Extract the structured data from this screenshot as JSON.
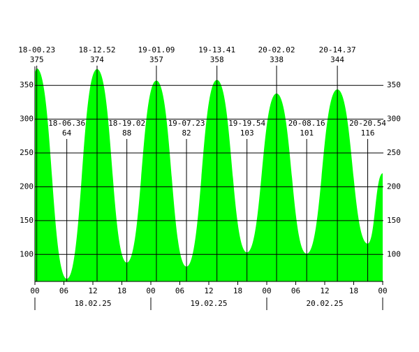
{
  "chart_data": {
    "type": "area",
    "x": [
      0,
      0.383,
      6.6,
      12.867,
      19.033,
      25.15,
      31.383,
      37.683,
      43.9,
      50.033,
      56.267,
      62.617,
      68.9,
      72
    ],
    "values": [
      370,
      375,
      64,
      374,
      88,
      357,
      82,
      358,
      103,
      338,
      101,
      344,
      116,
      220
    ],
    "point_labels": [
      null,
      "18-00.23",
      "18-06.36",
      "18-12.52",
      "18-19.02",
      "19-01.09",
      "19-07.23",
      "19-13.41",
      "19-19.54",
      "20-02.02",
      "20-08.16",
      "20-14.37",
      "20-20.54",
      null
    ],
    "color": "#00ff00",
    "xlim": [
      0,
      72
    ],
    "xticks": [
      {
        "value": 0,
        "label": "00"
      },
      {
        "value": 6,
        "label": "06"
      },
      12,
      18,
      {
        "value": 24,
        "label": "00"
      },
      {
        "value": 30,
        "label": "06"
      },
      {
        "value": 36,
        "label": "12"
      },
      {
        "value": 42,
        "label": "18"
      },
      {
        "value": 48,
        "label": "00"
      },
      {
        "value": 54,
        "label": "06"
      },
      {
        "value": 60,
        "label": "12"
      },
      {
        "value": 66,
        "label": "18"
      },
      {
        "value": 72,
        "label": "00"
      }
    ],
    "days": [
      {
        "value": 12,
        "label": "18.02.25"
      },
      {
        "value": 36,
        "label": "19.02.25"
      },
      {
        "value": 60,
        "label": "20.02.25"
      }
    ],
    "day_bounds": [
      0,
      24,
      48,
      72
    ],
    "ylim": [
      60,
      375
    ],
    "yticks": [
      100,
      150,
      200,
      250,
      300,
      350
    ],
    "grid": true
  }
}
